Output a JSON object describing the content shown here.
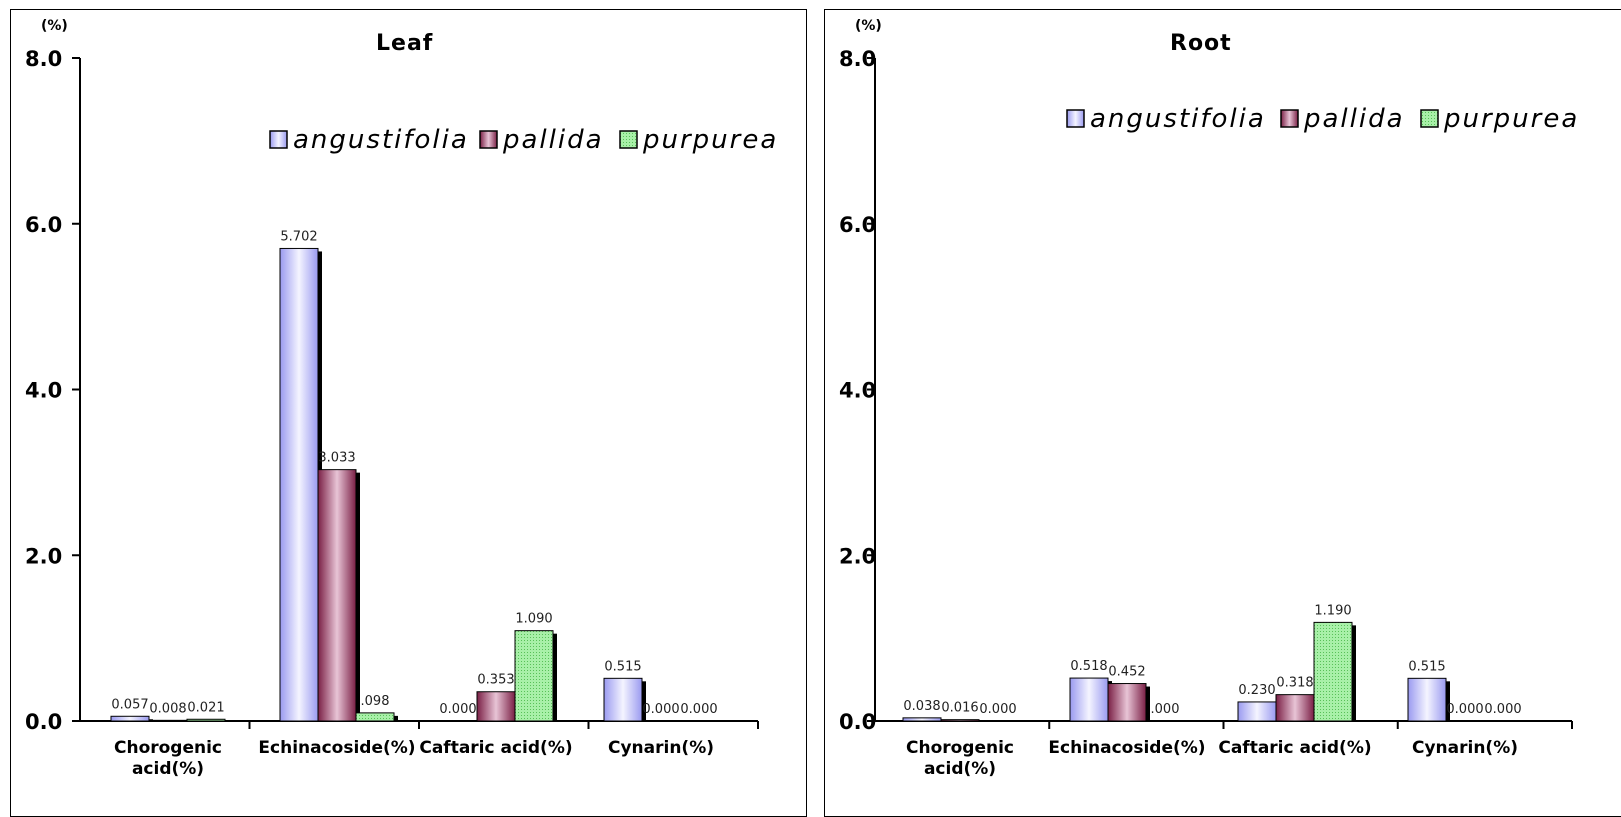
{
  "colors": {
    "angustifolia_light": "#f4f4ff",
    "angustifolia_dark": "#9a9af0",
    "pallida_light": "#e8c4d6",
    "pallida_dark": "#7a1f45",
    "purpurea_fill": "#a8f0a8",
    "purpurea_dots": "#58c058",
    "shadow": "#000000"
  },
  "chart_data": [
    {
      "type": "bar",
      "title": "Leaf",
      "unit": "(%)",
      "ylim": [
        0,
        8
      ],
      "yticks": [
        "0.0",
        "2.0",
        "4.0",
        "6.0",
        "8.0"
      ],
      "categories": [
        "Chorogenic acid(%)",
        "Echinacoside(%)",
        "Caftaric acid(%)",
        "Cynarin(%)"
      ],
      "category_lines": [
        [
          "Chorogenic",
          "acid(%)"
        ],
        [
          "Echinacoside(%)"
        ],
        [
          "Caftaric acid(%)"
        ],
        [
          "Cynarin(%)"
        ]
      ],
      "series": [
        {
          "name": "angustifolia",
          "values": [
            0.057,
            5.702,
            0.0,
            0.515
          ],
          "labels": [
            "0.057",
            "5.702",
            "0.000",
            "0.515"
          ]
        },
        {
          "name": "pallida",
          "values": [
            0.008,
            3.033,
            0.353,
            0.0
          ],
          "labels": [
            "0.008",
            "3.033",
            "0.353",
            "0.000"
          ]
        },
        {
          "name": "purpurea",
          "values": [
            0.021,
            0.098,
            1.09,
            0.0
          ],
          "labels": [
            "0.021",
            ".098",
            "1.090",
            "0.000"
          ]
        }
      ],
      "grid": false,
      "legend": "top-right"
    },
    {
      "type": "bar",
      "title": "Root",
      "unit": "(%)",
      "ylim": [
        0,
        8
      ],
      "yticks": [
        "0.0",
        "2.0",
        "4.0",
        "6.0",
        "8.0"
      ],
      "categories": [
        "Chorogenic acid(%)",
        "Echinacoside(%)",
        "Caftaric acid(%)",
        "Cynarin(%)"
      ],
      "category_lines": [
        [
          "Chorogenic",
          "acid(%)"
        ],
        [
          "Echinacoside(%)"
        ],
        [
          "Caftaric acid(%)"
        ],
        [
          "Cynarin(%)"
        ]
      ],
      "series": [
        {
          "name": "angustifolia",
          "values": [
            0.038,
            0.518,
            0.23,
            0.515
          ],
          "labels": [
            "0.038",
            "0.518",
            "0.230",
            "0.515"
          ]
        },
        {
          "name": "pallida",
          "values": [
            0.016,
            0.452,
            0.318,
            0.0
          ],
          "labels": [
            "0.016",
            "0.452",
            "0.318",
            "0.000"
          ]
        },
        {
          "name": "purpurea",
          "values": [
            0.0,
            0.0,
            1.19,
            0.0
          ],
          "labels": [
            "0.000",
            ".000",
            "1.190",
            "0.000"
          ]
        }
      ],
      "grid": false,
      "legend": "top-right"
    }
  ]
}
